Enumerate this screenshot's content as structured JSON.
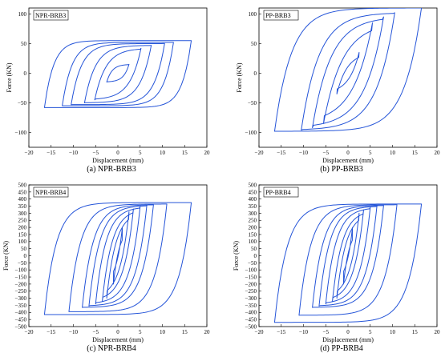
{
  "figure": {
    "colors": {
      "series": "#2454d8",
      "axis": "#000000",
      "background": "#ffffff"
    }
  },
  "chart_data": [
    {
      "type": "line",
      "caption": "(a) NPR-BRB3",
      "legend_label": "NPR-BRB3",
      "xlabel": "Displacement (mm)",
      "ylabel": "Force (KN)",
      "xlim": [
        -20,
        20
      ],
      "ylim": [
        -125,
        110
      ],
      "x_ticks": [
        -20,
        -15,
        -10,
        -5,
        0,
        5,
        10,
        15,
        20
      ],
      "y_ticks": [
        -100,
        -50,
        0,
        50,
        100
      ],
      "grid": false,
      "hysteresis_loops": [
        {
          "amplitude": 2.5,
          "f_pos": 15,
          "f_neg": -15,
          "k": 25
        },
        {
          "amplitude": 5.2,
          "f_pos": 42,
          "f_neg": -45,
          "k": 35
        },
        {
          "amplitude": 7.5,
          "f_pos": 47,
          "f_neg": -50,
          "k": 40
        },
        {
          "amplitude": 10.5,
          "f_pos": 50,
          "f_neg": -53,
          "k": 45
        },
        {
          "amplitude": 12.5,
          "f_pos": 52,
          "f_neg": -55,
          "k": 50
        },
        {
          "amplitude": 16.5,
          "f_pos": 55,
          "f_neg": -58,
          "k": 55
        }
      ]
    },
    {
      "type": "line",
      "caption": "(b) PP-BRB3",
      "legend_label": "PP-BRB3",
      "xlabel": "Displacement (mm)",
      "ylabel": "Force (KN)",
      "xlim": [
        -20,
        20
      ],
      "ylim": [
        -125,
        110
      ],
      "x_ticks": [
        -20,
        -15,
        -10,
        -5,
        0,
        5,
        10,
        15,
        20
      ],
      "y_ticks": [
        -100,
        -50,
        0,
        50,
        100
      ],
      "grid": false,
      "hysteresis_loops": [
        {
          "amplitude": 2.5,
          "f_pos": 35,
          "f_neg": -35,
          "k": 30
        },
        {
          "amplitude": 5.5,
          "f_pos": 85,
          "f_neg": -85,
          "k": 40
        },
        {
          "amplitude": 8.0,
          "f_pos": 95,
          "f_neg": -92,
          "k": 45
        },
        {
          "amplitude": 10.5,
          "f_pos": 102,
          "f_neg": -96,
          "k": 50
        },
        {
          "amplitude": 16.5,
          "f_pos": 110,
          "f_neg": -98,
          "k": 55
        }
      ]
    },
    {
      "type": "line",
      "caption": "(c) NPR-BRB4",
      "legend_label": "NPR-BRB4",
      "xlabel": "Displacement (mm)",
      "ylabel": "Force (KN)",
      "xlim": [
        -20,
        20
      ],
      "ylim": [
        -500,
        500
      ],
      "x_ticks": [
        -20,
        -15,
        -10,
        -5,
        0,
        5,
        10,
        15,
        20
      ],
      "y_ticks": [
        -500,
        -450,
        -400,
        -350,
        -300,
        -250,
        -200,
        -150,
        -100,
        -50,
        0,
        50,
        100,
        150,
        200,
        250,
        300,
        350,
        400,
        450,
        500
      ],
      "grid": false,
      "hysteresis_loops": [
        {
          "amplitude": 1.0,
          "f_pos": 200,
          "f_neg": -200,
          "k": 300
        },
        {
          "amplitude": 2.5,
          "f_pos": 310,
          "f_neg": -300,
          "k": 300
        },
        {
          "amplitude": 3.5,
          "f_pos": 330,
          "f_neg": -320,
          "k": 300
        },
        {
          "amplitude": 5.0,
          "f_pos": 345,
          "f_neg": -340,
          "k": 300
        },
        {
          "amplitude": 6.5,
          "f_pos": 355,
          "f_neg": -355,
          "k": 300
        },
        {
          "amplitude": 8.0,
          "f_pos": 360,
          "f_neg": -365,
          "k": 300
        },
        {
          "amplitude": 11.0,
          "f_pos": 365,
          "f_neg": -395,
          "k": 300
        },
        {
          "amplitude": 16.5,
          "f_pos": 375,
          "f_neg": -415,
          "k": 300
        }
      ]
    },
    {
      "type": "line",
      "caption": "(d) PP-BRB4",
      "legend_label": "PP-BRB4",
      "xlabel": "Displacement (mm)",
      "ylabel": "Force (KN)",
      "xlim": [
        -20,
        20
      ],
      "ylim": [
        -500,
        500
      ],
      "x_ticks": [
        -20,
        -15,
        -10,
        -5,
        0,
        5,
        10,
        15,
        20
      ],
      "y_ticks": [
        -500,
        -450,
        -400,
        -350,
        -300,
        -250,
        -200,
        -150,
        -100,
        -50,
        0,
        50,
        100,
        150,
        200,
        250,
        300,
        350,
        400,
        450,
        500
      ],
      "grid": false,
      "hysteresis_loops": [
        {
          "amplitude": 1.0,
          "f_pos": 200,
          "f_neg": -200,
          "k": 300
        },
        {
          "amplitude": 2.5,
          "f_pos": 300,
          "f_neg": -300,
          "k": 300
        },
        {
          "amplitude": 3.5,
          "f_pos": 320,
          "f_neg": -320,
          "k": 300
        },
        {
          "amplitude": 5.0,
          "f_pos": 340,
          "f_neg": -340,
          "k": 300
        },
        {
          "amplitude": 6.5,
          "f_pos": 350,
          "f_neg": -355,
          "k": 300
        },
        {
          "amplitude": 8.0,
          "f_pos": 355,
          "f_neg": -365,
          "k": 300
        },
        {
          "amplitude": 11.0,
          "f_pos": 360,
          "f_neg": -420,
          "k": 300
        },
        {
          "amplitude": 16.5,
          "f_pos": 365,
          "f_neg": -470,
          "k": 300
        }
      ]
    }
  ]
}
